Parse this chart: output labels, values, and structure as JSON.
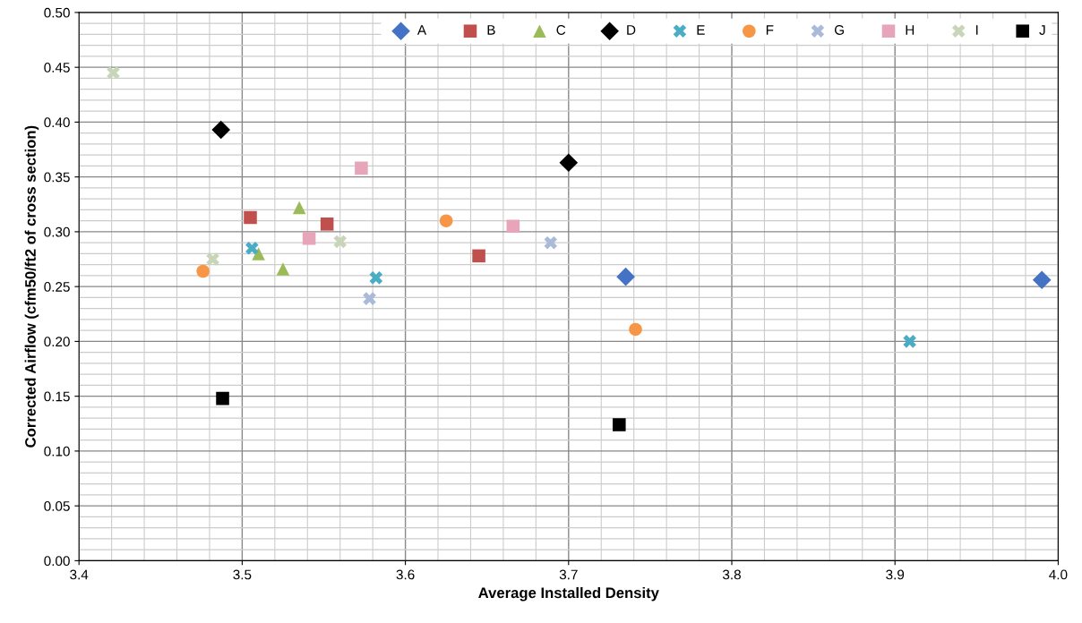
{
  "chart_data": {
    "type": "scatter",
    "xlabel": "Average Installed Density",
    "ylabel": "Corrected Airflow (cfm50/ft2 of cross section)",
    "xlim": [
      3.4,
      4.0
    ],
    "xticks": [
      {
        "value": 3.4,
        "label": "3.4"
      },
      {
        "value": 3.5,
        "label": "3.5"
      },
      {
        "value": 3.6,
        "label": "3.6"
      },
      {
        "value": 3.7,
        "label": "3.7"
      },
      {
        "value": 3.8,
        "label": "3.8"
      },
      {
        "value": 3.9,
        "label": "3.9"
      },
      {
        "value": 4.0,
        "label": "4.0"
      }
    ],
    "ylim": [
      0,
      0.5
    ],
    "yticks": [
      {
        "value": 0,
        "label": "0.00"
      },
      {
        "value": 0.05,
        "label": "0.05"
      },
      {
        "value": 0.1,
        "label": "0.10"
      },
      {
        "value": 0.15,
        "label": "0.15"
      },
      {
        "value": 0.2,
        "label": "0.20"
      },
      {
        "value": 0.25,
        "label": "0.25"
      },
      {
        "value": 0.3,
        "label": "0.30"
      },
      {
        "value": 0.35,
        "label": "0.35"
      },
      {
        "value": 0.4,
        "label": "0.40"
      },
      {
        "value": 0.45,
        "label": "0.45"
      },
      {
        "value": 0.5,
        "label": "0.50"
      }
    ],
    "grid": true,
    "legend": "top right",
    "series": [
      {
        "name": "A",
        "color": "#4472c4",
        "marker": "diamond",
        "x": [
          3.735,
          3.99
        ],
        "values": [
          0.259,
          0.256
        ]
      },
      {
        "name": "B",
        "color": "#c0504d",
        "marker": "square",
        "x": [
          3.505,
          3.552,
          3.645
        ],
        "values": [
          0.313,
          0.307,
          0.278
        ]
      },
      {
        "name": "C",
        "color": "#9bbb59",
        "marker": "triangle",
        "x": [
          3.535,
          3.51,
          3.525
        ],
        "values": [
          0.322,
          0.28,
          0.266
        ]
      },
      {
        "name": "D",
        "color": "#000000",
        "marker": "diamond",
        "x": [
          3.487,
          3.7
        ],
        "values": [
          0.393,
          0.363
        ]
      },
      {
        "name": "E",
        "color": "#4bacc6",
        "marker": "cross",
        "x": [
          3.506,
          3.582,
          3.909
        ],
        "values": [
          0.285,
          0.258,
          0.2
        ]
      },
      {
        "name": "F",
        "color": "#f79646",
        "marker": "circle",
        "x": [
          3.476,
          3.625,
          3.741
        ],
        "values": [
          0.264,
          0.31,
          0.211
        ]
      },
      {
        "name": "G",
        "color": "#a9bbd9",
        "marker": "cross",
        "x": [
          3.578,
          3.689
        ],
        "values": [
          0.239,
          0.29
        ]
      },
      {
        "name": "H",
        "color": "#e6a5b8",
        "marker": "square",
        "x": [
          3.573,
          3.541,
          3.666
        ],
        "values": [
          0.358,
          0.294,
          0.305
        ]
      },
      {
        "name": "I",
        "color": "#c8d5b9",
        "marker": "cross",
        "x": [
          3.421,
          3.482,
          3.56
        ],
        "values": [
          0.445,
          0.275,
          0.291
        ]
      },
      {
        "name": "J",
        "color": "#000000",
        "marker": "square",
        "x": [
          3.488,
          3.731
        ],
        "values": [
          0.148,
          0.124
        ]
      }
    ]
  }
}
